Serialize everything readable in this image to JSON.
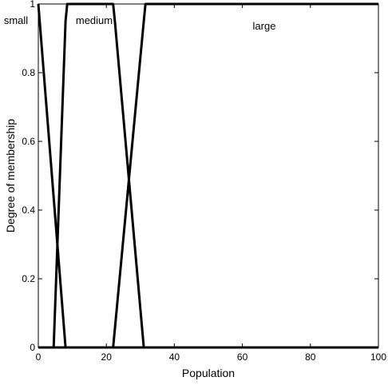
{
  "chart_data": {
    "type": "line",
    "title": "",
    "xlabel": "Population",
    "ylabel": "Degree of membership",
    "xlim": [
      0,
      100
    ],
    "ylim": [
      0,
      1
    ],
    "x_ticks": [
      0,
      20,
      40,
      60,
      80,
      100
    ],
    "y_ticks": [
      0,
      0.2,
      0.4,
      0.6,
      0.8,
      1
    ],
    "grid": false,
    "line_color": "#000000",
    "series": [
      {
        "name": "small",
        "x": [
          0,
          8,
          100
        ],
        "y": [
          1,
          0,
          0
        ]
      },
      {
        "name": "medium",
        "x": [
          0,
          4.5,
          8,
          8.5,
          22,
          22.5,
          31,
          100
        ],
        "y": [
          0,
          0,
          0.95,
          1,
          1,
          0.95,
          0,
          0
        ]
      },
      {
        "name": "large",
        "x": [
          0,
          22,
          31,
          31.5,
          100
        ],
        "y": [
          0,
          0,
          0.95,
          1,
          1
        ]
      }
    ]
  }
}
